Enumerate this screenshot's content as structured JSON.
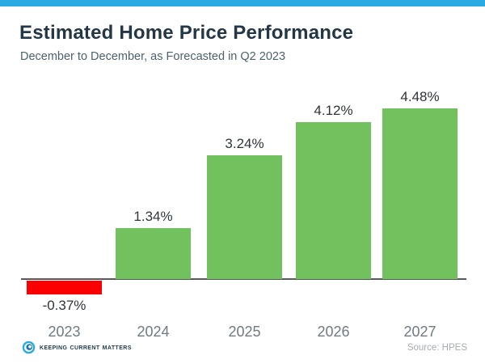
{
  "header": {
    "title": "Estimated Home Price Performance",
    "subtitle": "December to December, as Forecasted in Q2 2023"
  },
  "chart_data": {
    "type": "bar",
    "title": "Estimated Home Price Performance",
    "subtitle": "December to December, as Forecasted in Q2 2023",
    "categories": [
      "2023",
      "2024",
      "2025",
      "2026",
      "2027"
    ],
    "values": [
      -0.37,
      1.34,
      3.24,
      4.12,
      4.48
    ],
    "value_labels": [
      "-0.37%",
      "1.34%",
      "3.24%",
      "4.12%",
      "4.48%"
    ],
    "xlabel": "",
    "ylabel": "",
    "ylim": [
      -0.6,
      5.0
    ],
    "grid": false,
    "legend": false,
    "axis_line": "x-baseline-only",
    "bar_colors": {
      "positive": "#71C15F",
      "negative": "#FB0000"
    }
  },
  "footer": {
    "logo_text": "Keeping Current Matters",
    "source": "Source: HPES"
  },
  "colors": {
    "topbar": "#29ABE2",
    "positive": "#71C15F",
    "negative": "#FB0000",
    "axis": "#58595B",
    "title": "#243746",
    "subtitle": "#4C616D",
    "value_label": "#2E3439",
    "tick_label": "#6F7A83",
    "source": "#A9ACB0",
    "logo_outer": "#29ABE2",
    "logo_inner": "#1B75BC",
    "logo_text": "#1D3A4D"
  }
}
